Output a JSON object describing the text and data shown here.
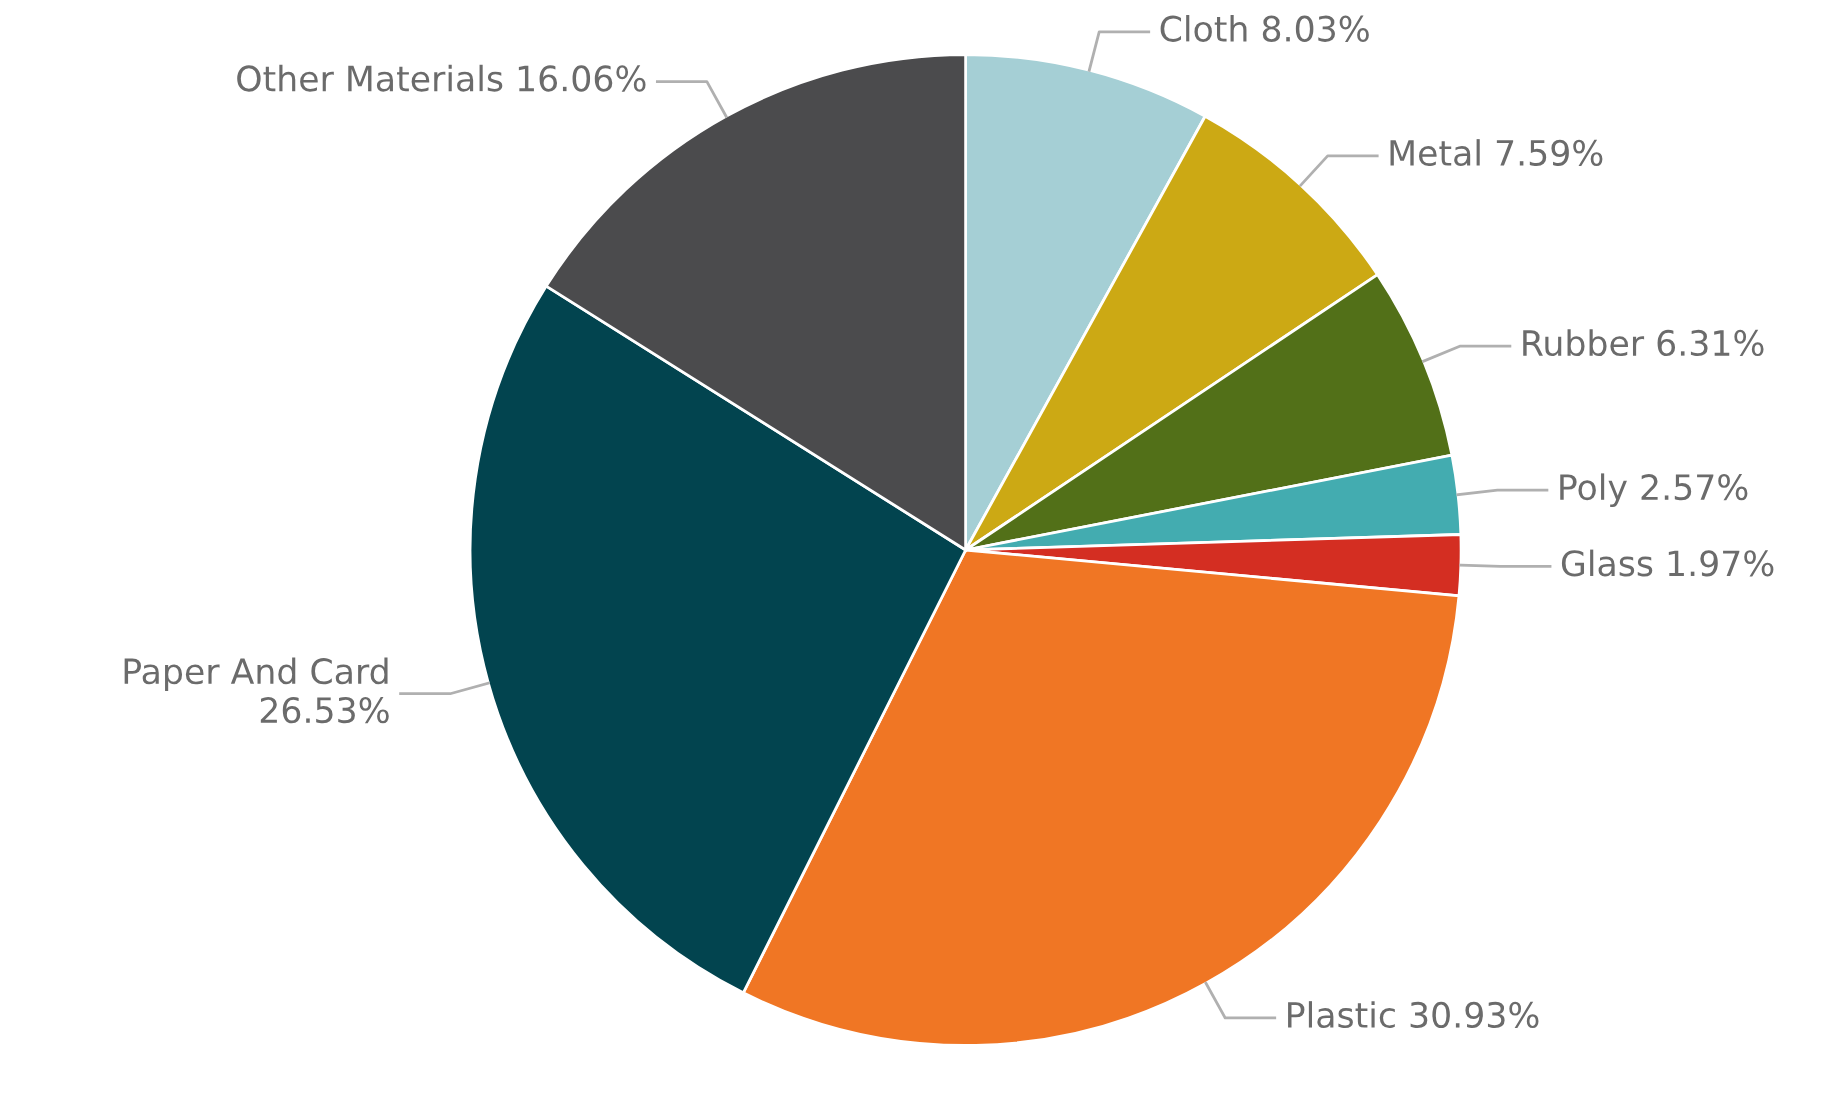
{
  "chart_data": {
    "type": "pie",
    "categories": [
      "Cloth",
      "Metal",
      "Rubber",
      "Poly",
      "Glass",
      "Plastic",
      "Paper And Card",
      "Other Materials"
    ],
    "values": [
      8.03,
      7.59,
      6.31,
      2.57,
      1.97,
      30.93,
      26.53,
      16.06
    ],
    "colors": [
      "#a5cfd5",
      "#cca914",
      "#527018",
      "#43acb0",
      "#d42e22",
      "#f07624",
      "#02444f",
      "#4b4b4d"
    ],
    "value_labels": [
      "8.03%",
      "7.59%",
      "6.31%",
      "2.57%",
      "1.97%",
      "30.93%",
      "26.53%",
      "16.06%"
    ]
  }
}
